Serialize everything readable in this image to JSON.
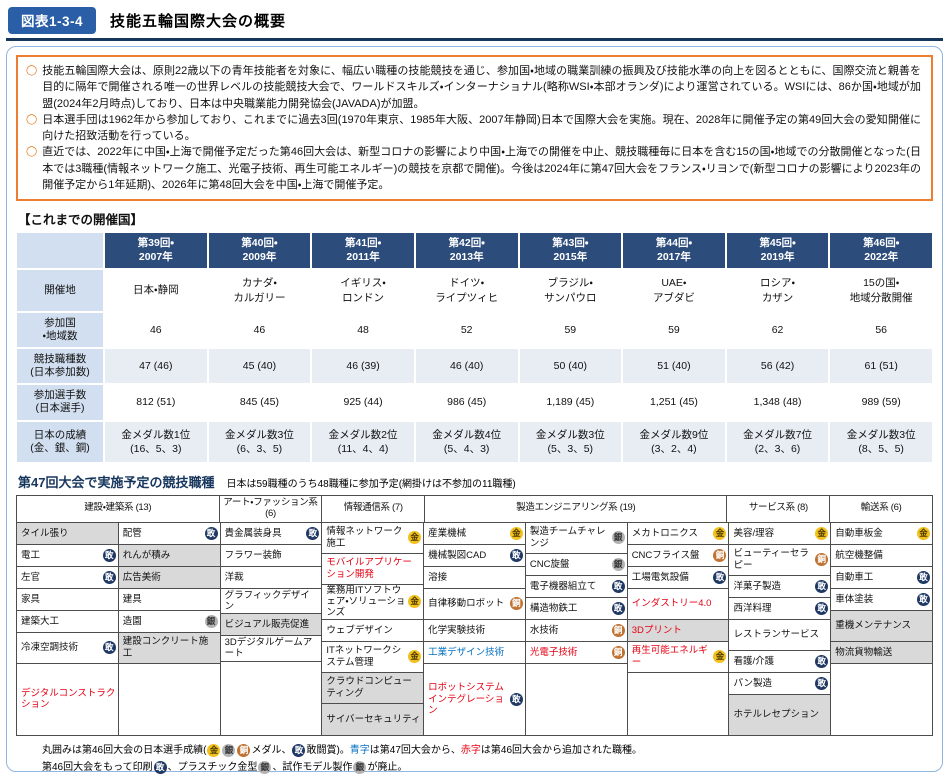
{
  "header": {
    "fig_label": "図表1-3-4",
    "title": "技能五輪国際大会の概要"
  },
  "summary": {
    "bullets": [
      "技能五輪国際大会は、原則22歳以下の青年技能者を対象に、幅広い職種の技能競技を通じ、参加国・地域の職業訓練の振興及び技能水準の向上を図るとともに、国際交流と親善を目的に隔年で開催される唯一の世界レベルの技能競技大会で、ワールドスキルズ・インターナショナル(略称WSI・本部オランダ)により運営されている。WSIには、86か国・地域が加盟(2024年2月時点)しており、日本は中央職業能力開発協会(JAVADA)が加盟。",
      "日本選手団は1962年から参加しており、これまでに過去3回(1970年東京、1985年大阪、2007年静岡)日本で国際大会を実施。現在、2028年に開催予定の第49回大会の愛知開催に向けた招致活動を行っている。",
      "直近では、2022年に中国・上海で開催予定だった第46回大会は、新型コロナの影響により中国・上海での開催を中止、競技職種毎に日本を含む15の国・地域での分散開催となった(日本では3職種(情報ネットワーク施工、光電子技術、再生可能エネルギー)の競技を京都で開催)。今後は2024年に第47回大会をフランス・リヨンで(新型コロナの影響により2023年の開催予定から1年延期)、2026年に第48回大会を中国・上海で開催予定。"
    ]
  },
  "host_table": {
    "section_title": "【これまでの開催国】",
    "columns": [
      "第39回・\n2007年",
      "第40回・\n2009年",
      "第41回・\n2011年",
      "第42回・\n2013年",
      "第43回・\n2015年",
      "第44回・\n2017年",
      "第45回・\n2019年",
      "第46回・\n2022年"
    ],
    "rows": [
      {
        "label": "開催地",
        "alt": false,
        "values": [
          "日本・静岡",
          "カナダ・\nカルガリー",
          "イギリス・\nロンドン",
          "ドイツ・\nライプツィヒ",
          "ブラジル・\nサンパウロ",
          "UAE・\nアブダビ",
          "ロシア・\nカザン",
          "15の国・\n地域分散開催"
        ]
      },
      {
        "label": "参加国\n・地域数",
        "alt": false,
        "values": [
          "46",
          "46",
          "48",
          "52",
          "59",
          "59",
          "62",
          "56"
        ]
      },
      {
        "label": "競技職種数\n(日本参加数)",
        "alt": true,
        "values": [
          "47 (46)",
          "45 (40)",
          "46 (39)",
          "46 (40)",
          "50 (40)",
          "51 (40)",
          "56 (42)",
          "61 (51)"
        ]
      },
      {
        "label": "参加選手数\n(日本選手)",
        "alt": false,
        "values": [
          "812 (51)",
          "845 (45)",
          "925 (44)",
          "986 (45)",
          "1,189 (45)",
          "1,251 (45)",
          "1,348 (48)",
          "989 (59)"
        ]
      },
      {
        "label": "日本の成績\n(金、銀、銅)",
        "alt": true,
        "values": [
          "金メダル数1位\n(16、5、3)",
          "金メダル数3位\n(6、3、5)",
          "金メダル数2位\n(11、4、4)",
          "金メダル数4位\n(5、4、3)",
          "金メダル数3位\n(5、3、5)",
          "金メダル数9位\n(3、2、4)",
          "金メダル数7位\n(2、3、6)",
          "金メダル数3位\n(8、5、5)"
        ]
      }
    ]
  },
  "skills_table": {
    "title": "第47回大会で実施予定の競技職種",
    "note": "日本は59職種のうち48職種に参加予定(網掛けは不参加の11職種)",
    "group_headers": [
      {
        "label": "建設・建築系 (13)",
        "span": 2
      },
      {
        "label": "アート・ファッション系 (6)",
        "span": 1
      },
      {
        "label": "情報通信系 (7)",
        "span": 1
      },
      {
        "label": "製造エンジニアリング系 (19)",
        "span": 3
      },
      {
        "label": "サービス系 (8)",
        "span": 1
      },
      {
        "label": "輸送系 (6)",
        "span": 1
      }
    ],
    "columns": [
      {
        "filler": false,
        "cells": [
          {
            "n": "タイル張り",
            "s": true,
            "l": 1
          },
          {
            "n": "電工",
            "m": "effort",
            "l": 1
          },
          {
            "n": "左官",
            "m": "effort",
            "l": 1
          },
          {
            "n": "家具",
            "l": 1
          },
          {
            "n": "建築大工",
            "l": 1
          },
          {
            "n": "冷凍空調技術",
            "m": "effort",
            "l": 2
          },
          {
            "n": "デジタルコンストラクション",
            "c": "red",
            "l": 2
          }
        ]
      },
      {
        "filler": true,
        "cells": [
          {
            "n": "配管",
            "m": "effort",
            "l": 1
          },
          {
            "n": "れんが積み",
            "s": true,
            "l": 1
          },
          {
            "n": "広告美術",
            "s": true,
            "l": 1
          },
          {
            "n": "建具",
            "l": 1
          },
          {
            "n": "造園",
            "m": "silver",
            "l": 1
          },
          {
            "n": "建設コンクリート施工",
            "s": true,
            "l": 2
          }
        ]
      },
      {
        "filler": true,
        "cells": [
          {
            "n": "貴金属装身具",
            "m": "effort",
            "l": 1
          },
          {
            "n": "フラワー装飾",
            "l": 1
          },
          {
            "n": "洋裁",
            "l": 1
          },
          {
            "n": "グラフィックデザイン",
            "l": 1
          },
          {
            "n": "ビジュアル販売促進",
            "s": true,
            "l": 1
          },
          {
            "n": "3Dデジタルゲームアート",
            "l": 1
          }
        ]
      },
      {
        "filler": false,
        "cells": [
          {
            "n": "情報ネットワーク施工",
            "m": "gold",
            "l": 2
          },
          {
            "n": "モバイルアプリケーション開発",
            "c": "red",
            "l": 2
          },
          {
            "n": "業務用ITソフトウェア・ソリューションズ",
            "m": "gold",
            "l": 2
          },
          {
            "n": "ウェブデザイン",
            "l": 1
          },
          {
            "n": "ITネットワークシステム管理",
            "m": "gold",
            "l": 2
          },
          {
            "n": "クラウドコンピューティング",
            "s": true,
            "l": 2
          },
          {
            "n": "サイバーセキュリティ",
            "s": true,
            "l": 2
          }
        ]
      },
      {
        "filler": false,
        "cells": [
          {
            "n": "産業機械",
            "m": "gold",
            "l": 1
          },
          {
            "n": "機械製図CAD",
            "m": "effort",
            "l": 1
          },
          {
            "n": "溶接",
            "l": 1
          },
          {
            "n": "自律移動ロボット",
            "m": "bronze",
            "l": 2
          },
          {
            "n": "化学実験技術",
            "l": 1
          },
          {
            "n": "工業デザイン技術",
            "c": "blue",
            "l": 1
          },
          {
            "n": "ロボットシステムインテグレーション",
            "c": "red",
            "m": "effort",
            "l": 2
          }
        ]
      },
      {
        "filler": true,
        "cells": [
          {
            "n": "製造チームチャレンジ",
            "m": "silver",
            "l": 2
          },
          {
            "n": "CNC旋盤",
            "m": "silver",
            "l": 1
          },
          {
            "n": "電子機器組立て",
            "m": "effort",
            "l": 1
          },
          {
            "n": "構造物鉄工",
            "m": "effort",
            "l": 1
          },
          {
            "n": "水技術",
            "m": "bronze",
            "l": 1
          },
          {
            "n": "光電子技術",
            "c": "red",
            "m": "bronze",
            "l": 1
          }
        ]
      },
      {
        "filler": true,
        "cells": [
          {
            "n": "メカトロニクス",
            "m": "gold",
            "l": 1
          },
          {
            "n": "CNCフライス盤",
            "m": "bronze",
            "l": 1
          },
          {
            "n": "工場電気設備",
            "m": "effort",
            "l": 1
          },
          {
            "n": "インダストリー4.0",
            "c": "red",
            "l": 2
          },
          {
            "n": "3Dプリント",
            "c": "red",
            "s": true,
            "l": 1
          },
          {
            "n": "再生可能エネルギー",
            "c": "red",
            "m": "gold",
            "l": 2
          }
        ]
      },
      {
        "filler": false,
        "cells": [
          {
            "n": "美容/理容",
            "m": "gold",
            "l": 1
          },
          {
            "n": "ビューティーセラピー",
            "m": "bronze",
            "l": 2
          },
          {
            "n": "洋菓子製造",
            "m": "effort",
            "l": 1
          },
          {
            "n": "西洋料理",
            "m": "effort",
            "l": 1
          },
          {
            "n": "レストランサービス",
            "l": 2
          },
          {
            "n": "看護/介護",
            "m": "effort",
            "l": 1
          },
          {
            "n": "パン製造",
            "m": "effort",
            "l": 1
          },
          {
            "n": "ホテルレセプション",
            "s": true,
            "l": 2
          }
        ]
      },
      {
        "filler": true,
        "cells": [
          {
            "n": "自動車板金",
            "m": "gold",
            "l": 1
          },
          {
            "n": "航空機整備",
            "l": 1
          },
          {
            "n": "自動車工",
            "m": "effort",
            "l": 1
          },
          {
            "n": "車体塗装",
            "m": "effort",
            "l": 1
          },
          {
            "n": "重機メンテナンス",
            "s": true,
            "l": 2
          },
          {
            "n": "物流貨物輸送",
            "s": true,
            "l": 1
          }
        ]
      }
    ]
  },
  "medals": {
    "gold": "金",
    "silver": "銀",
    "bronze": "銅",
    "effort": "敢"
  },
  "legend": {
    "lines": [
      [
        {
          "t": "丸囲みは第46回大会の日本選手成績("
        },
        {
          "i": "gold"
        },
        {
          "i": "silver"
        },
        {
          "i": "bronze"
        },
        {
          "t": "メダル、"
        },
        {
          "i": "effort"
        },
        {
          "t": "敢闘賞)。"
        },
        {
          "t": "青字",
          "c": "blue"
        },
        {
          "t": "は第47回大会から、"
        },
        {
          "t": "赤字",
          "c": "red"
        },
        {
          "t": "は第46回大会から追加された職種。"
        }
      ],
      [
        {
          "t": "第46回大会をもって印刷"
        },
        {
          "i": "effort"
        },
        {
          "t": "、プラスチック金型"
        },
        {
          "i": "silver"
        },
        {
          "t": "、試作モデル製作"
        },
        {
          "i": "silver"
        },
        {
          "t": "が廃止。"
        }
      ]
    ]
  }
}
